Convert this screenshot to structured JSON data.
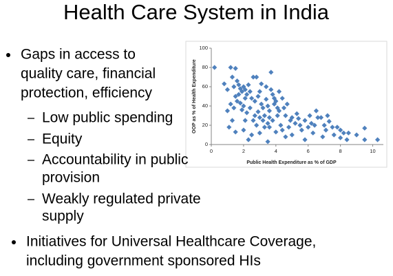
{
  "title": "Health Care System in India",
  "bullets": [
    {
      "lines": [
        "Gaps in access to",
        "quality care, financial",
        "protection, efficiency"
      ],
      "sub": [
        {
          "lines": [
            "Low public spending"
          ]
        },
        {
          "lines": [
            "Equity"
          ]
        },
        {
          "lines": [
            "Accountability in public",
            "provision"
          ]
        },
        {
          "lines": [
            "Weakly regulated private",
            "supply"
          ]
        }
      ]
    },
    {
      "lines": [
        "Initiatives for Universal Healthcare Coverage,",
        "including government sponsored HIs"
      ]
    }
  ],
  "chart_data": {
    "type": "scatter",
    "x_label": "Public Health Expenditure as % of GDP",
    "y_label": "OOP as % of Health Expenditure",
    "color": "#4f81bd",
    "xlim": [
      0,
      11
    ],
    "xticks": [
      0,
      2,
      4,
      6,
      8,
      10
    ],
    "ylim": [
      0,
      100
    ],
    "yticks": [
      0,
      20,
      40,
      60,
      80,
      100
    ],
    "x": [
      0.2,
      0.8,
      1.0,
      1.2,
      1.5,
      1.3,
      1.6,
      1.4,
      1.7,
      1.8,
      1.9,
      2.0,
      2.1,
      2.2,
      1.5,
      1.6,
      1.8,
      2.0,
      1.4,
      1.9,
      2.2,
      2.4,
      2.6,
      2.8,
      2.5,
      2.7,
      2.9,
      3.0,
      3.1,
      3.2,
      2.9,
      3.3,
      3.0,
      2.6,
      2.8,
      3.4,
      3.5,
      3.6,
      3.7,
      3.8,
      3.9,
      4.0,
      3.6,
      3.8,
      4.1,
      4.2,
      3.5,
      3.3,
      3.0,
      2.5,
      2.0,
      1.5,
      2.3,
      3.5,
      4.0,
      4.3,
      4.5,
      4.7,
      4.6,
      4.9,
      5.0,
      5.2,
      5.3,
      5.0,
      5.5,
      5.6,
      5.8,
      6.0,
      6.2,
      6.5,
      6.3,
      6.6,
      6.8,
      7.0,
      7.1,
      7.3,
      7.5,
      7.8,
      8.0,
      8.0,
      8.2,
      8.5,
      8.4,
      9.5,
      9.5,
      10.3,
      9.0,
      7.6,
      6.9,
      5.8,
      4.4,
      4.8,
      5.4,
      6.1,
      6.4,
      7.2,
      2.3,
      2.1,
      1.7,
      1.2,
      1.0,
      1.3,
      3.1,
      3.4,
      3.7,
      4.2,
      4.4,
      3.9,
      4.1,
      2.4,
      2.7,
      3.2,
      3.6,
      4.6,
      2.1,
      1.1
    ],
    "y": [
      80,
      63,
      57,
      80,
      79,
      70,
      66,
      60,
      62,
      58,
      55,
      60,
      57,
      52,
      50,
      45,
      43,
      40,
      38,
      36,
      33,
      55,
      70,
      70,
      48,
      45,
      50,
      55,
      42,
      38,
      34,
      30,
      28,
      25,
      20,
      47,
      40,
      35,
      75,
      52,
      48,
      45,
      28,
      25,
      30,
      35,
      22,
      18,
      12,
      10,
      15,
      13,
      5,
      3,
      13,
      20,
      38,
      42,
      30,
      25,
      28,
      22,
      32,
      10,
      20,
      15,
      25,
      18,
      22,
      35,
      12,
      28,
      28,
      20,
      15,
      24,
      18,
      18,
      15,
      7,
      12,
      12,
      5,
      17,
      5,
      5,
      10,
      10,
      8,
      5,
      15,
      18,
      27,
      30,
      20,
      30,
      62,
      48,
      52,
      42,
      35,
      25,
      63,
      60,
      57,
      55,
      48,
      42,
      38,
      38,
      30,
      25,
      18,
      8,
      25,
      18
    ]
  }
}
